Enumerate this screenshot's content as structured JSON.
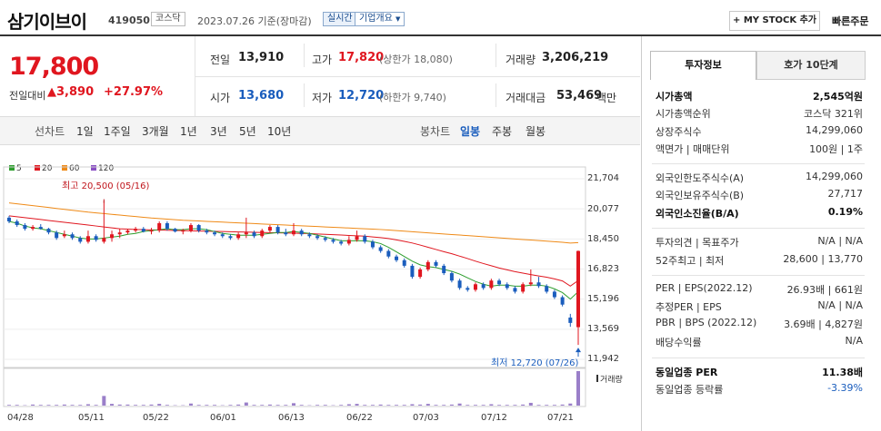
{
  "header": {
    "name": "삼기이브이",
    "code": "419050",
    "market": "코스닥",
    "date": "2023.07.26 기준(장마감)",
    "realtime": "실시간",
    "company": "기업개요",
    "mystock": "+ MY STOCK 추가",
    "fast_order": "빠른주문"
  },
  "quote": {
    "price": "17,800",
    "change_label": "전일대비",
    "change": "▲3,890",
    "change_pct": "+27.97%",
    "prev_label": "전일",
    "prev": "13,910",
    "high_label": "고가",
    "high": "17,820",
    "upper_limit": "(상한가 18,080)",
    "volume_label": "거래량",
    "volume": "3,206,219",
    "open_label": "시가",
    "open": "13,680",
    "low_label": "저가",
    "low": "12,720",
    "lower_limit": "(하한가 9,740)",
    "amount_label": "거래대금",
    "amount": "53,469",
    "amount_unit": "백만"
  },
  "chart_tabs": {
    "line_label": "선차트",
    "periods": [
      "1일",
      "1주일",
      "3개월",
      "1년",
      "3년",
      "5년",
      "10년"
    ],
    "candle_label": "봉차트",
    "candle_periods": [
      "일봉",
      "주봉",
      "월봉"
    ],
    "selected": "일봉"
  },
  "side": {
    "tabs": [
      "투자정보",
      "호가 10단계"
    ],
    "rows": [
      {
        "label": "시가총액",
        "value": "2,545억원",
        "bold": true
      },
      {
        "label": "시가총액순위",
        "value": "코스닥 321위"
      },
      {
        "label": "상장주식수",
        "value": "14,299,060"
      },
      {
        "label": "액면가 | 매매단위",
        "value": "100원 | 1주"
      },
      {
        "label": "외국인한도주식수(A)",
        "value": "14,299,060"
      },
      {
        "label": "외국인보유주식수(B)",
        "value": "27,717"
      },
      {
        "label": "외국인소진율(B/A)",
        "value": "0.19%",
        "bold": true
      },
      {
        "label": "투자의견 | 목표주가",
        "value": "N/A | N/A"
      },
      {
        "label": "52주최고 | 최저",
        "value": "28,600 | 13,770"
      },
      {
        "label": "PER | EPS(2022.12)",
        "value": "26.93배 | 661원"
      },
      {
        "label": "추정PER | EPS",
        "value": "N/A | N/A"
      },
      {
        "label": "PBR | BPS (2022.12)",
        "value": "3.69배 | 4,827원"
      },
      {
        "label": "배당수익률",
        "value": "N/A"
      },
      {
        "label": "동일업종 PER",
        "value": "11.38배",
        "bold": true
      },
      {
        "label": "동일업종 등락률",
        "value": "-3.39%",
        "blue": true
      }
    ]
  },
  "chart_data": {
    "type": "candlestick",
    "legend": [
      {
        "name": "5",
        "color": "#2e9e2e"
      },
      {
        "name": "20",
        "color": "#e0161f"
      },
      {
        "name": "60",
        "color": "#ef8a17"
      },
      {
        "name": "120",
        "color": "#8a4fc4"
      }
    ],
    "yticks": [
      "21,704",
      "20,077",
      "18,450",
      "16,823",
      "15,196",
      "13,569",
      "11,942"
    ],
    "ylim": [
      11942,
      21704
    ],
    "xticks": [
      "04/28",
      "05/11",
      "05/22",
      "06/01",
      "06/13",
      "06/22",
      "07/03",
      "07/12",
      "07/21"
    ],
    "high_note": "최고 20,500 (05/16)",
    "low_note": "최저 12,720 (07/26)",
    "volume_label": "거래량",
    "candles": [
      [
        19600,
        19700,
        19300,
        19400
      ],
      [
        19400,
        19500,
        19100,
        19200
      ],
      [
        19200,
        19300,
        18900,
        19000
      ],
      [
        19000,
        19200,
        18900,
        19100
      ],
      [
        19100,
        19250,
        18950,
        19000
      ],
      [
        19000,
        19050,
        18700,
        18800
      ],
      [
        18800,
        18900,
        18400,
        18500
      ],
      [
        18600,
        18900,
        18500,
        18700
      ],
      [
        18700,
        18800,
        18400,
        18500
      ],
      [
        18500,
        18600,
        18200,
        18300
      ],
      [
        18300,
        18900,
        18200,
        18600
      ],
      [
        18600,
        18700,
        18300,
        18400
      ],
      [
        18300,
        20500,
        18200,
        18500
      ],
      [
        18500,
        18900,
        18300,
        18700
      ],
      [
        18700,
        19000,
        18500,
        18800
      ],
      [
        18800,
        19000,
        18700,
        18900
      ],
      [
        18900,
        19100,
        18800,
        19000
      ],
      [
        19000,
        19100,
        18800,
        18850
      ],
      [
        18850,
        19050,
        18700,
        18900
      ],
      [
        18900,
        19400,
        18800,
        19300
      ],
      [
        19300,
        19400,
        18900,
        19000
      ],
      [
        19000,
        19050,
        18800,
        18850
      ],
      [
        18850,
        19000,
        18700,
        18900
      ],
      [
        18900,
        19300,
        18800,
        19200
      ],
      [
        19200,
        19250,
        18800,
        18900
      ],
      [
        18900,
        19000,
        18700,
        18800
      ],
      [
        18800,
        18900,
        18600,
        18700
      ],
      [
        18700,
        18800,
        18500,
        18600
      ],
      [
        18600,
        18700,
        18400,
        18500
      ],
      [
        18500,
        18800,
        18400,
        18700
      ],
      [
        18700,
        19600,
        18500,
        18800
      ],
      [
        18800,
        18900,
        18500,
        18600
      ],
      [
        18600,
        19000,
        18500,
        18900
      ],
      [
        18900,
        19200,
        18800,
        19100
      ],
      [
        19100,
        19200,
        18700,
        18800
      ],
      [
        18800,
        19000,
        18600,
        18700
      ],
      [
        18700,
        19300,
        18600,
        18900
      ],
      [
        18900,
        19000,
        18600,
        18700
      ],
      [
        18700,
        18800,
        18500,
        18600
      ],
      [
        18600,
        18700,
        18400,
        18500
      ],
      [
        18500,
        18600,
        18300,
        18400
      ],
      [
        18400,
        18500,
        18200,
        18300
      ],
      [
        18300,
        18400,
        18100,
        18200
      ],
      [
        18200,
        18600,
        18100,
        18400
      ],
      [
        18400,
        18900,
        18300,
        18600
      ],
      [
        18600,
        18700,
        18200,
        18300
      ],
      [
        18300,
        18400,
        17900,
        18000
      ],
      [
        18000,
        18100,
        17700,
        17800
      ],
      [
        17800,
        17900,
        17400,
        17500
      ],
      [
        17500,
        17600,
        17200,
        17300
      ],
      [
        17300,
        17400,
        16900,
        17000
      ],
      [
        17000,
        17100,
        16300,
        16400
      ],
      [
        16400,
        16900,
        16300,
        16800
      ],
      [
        16800,
        17300,
        16700,
        17200
      ],
      [
        17200,
        17300,
        16900,
        17000
      ],
      [
        17000,
        17100,
        16500,
        16600
      ],
      [
        16600,
        16700,
        16100,
        16200
      ],
      [
        16200,
        16300,
        15700,
        15800
      ],
      [
        15800,
        15900,
        15600,
        15700
      ],
      [
        15700,
        16100,
        15600,
        16000
      ],
      [
        16000,
        16100,
        15700,
        15800
      ],
      [
        15800,
        16300,
        15700,
        16200
      ],
      [
        16200,
        16300,
        15900,
        16000
      ],
      [
        16000,
        16100,
        15700,
        15800
      ],
      [
        15800,
        15900,
        15500,
        15600
      ],
      [
        15600,
        16100,
        15500,
        16000
      ],
      [
        16000,
        16800,
        15900,
        16100
      ],
      [
        16100,
        16400,
        15800,
        15900
      ],
      [
        15900,
        16000,
        15500,
        15600
      ],
      [
        15600,
        15700,
        15200,
        15300
      ],
      [
        15300,
        15400,
        14800,
        14900
      ],
      [
        14200,
        14400,
        13700,
        13910
      ],
      [
        13680,
        17820,
        12720,
        17800
      ]
    ],
    "ma5": [
      19400,
      19300,
      19150,
      19050,
      19000,
      18900,
      18800,
      18700,
      18600,
      18500,
      18450,
      18450,
      18500,
      18550,
      18600,
      18700,
      18750,
      18850,
      18900,
      18950,
      19000,
      18950,
      18950,
      19000,
      19000,
      18950,
      18850,
      18750,
      18700,
      18650,
      18650,
      18650,
      18700,
      18750,
      18800,
      18800,
      18850,
      18800,
      18750,
      18650,
      18550,
      18450,
      18350,
      18350,
      18350,
      18350,
      18300,
      18200,
      18000,
      17750,
      17500,
      17250,
      17050,
      16950,
      16900,
      16800,
      16700,
      16550,
      16350,
      16150,
      16000,
      15900,
      15950,
      15950,
      15900,
      15900,
      15950,
      15950,
      15900,
      15750,
      15550,
      15200,
      15600
    ],
    "ma20": [
      19700,
      19650,
      19600,
      19550,
      19500,
      19450,
      19400,
      19350,
      19300,
      19250,
      19200,
      19150,
      19100,
      19050,
      19000,
      18980,
      18960,
      18950,
      18940,
      18930,
      18920,
      18910,
      18900,
      18890,
      18880,
      18870,
      18860,
      18850,
      18840,
      18830,
      18820,
      18810,
      18800,
      18790,
      18780,
      18770,
      18760,
      18750,
      18740,
      18720,
      18700,
      18680,
      18660,
      18640,
      18620,
      18600,
      18560,
      18520,
      18470,
      18400,
      18320,
      18230,
      18120,
      18000,
      17880,
      17760,
      17650,
      17520,
      17390,
      17250,
      17120,
      17000,
      16880,
      16780,
      16680,
      16600,
      16520,
      16450,
      16380,
      16290,
      16180,
      15900,
      16200
    ],
    "ma60": [
      20400,
      20350,
      20300,
      20250,
      20200,
      20150,
      20100,
      20050,
      20000,
      19950,
      19900,
      19860,
      19820,
      19780,
      19740,
      19700,
      19660,
      19620,
      19580,
      19550,
      19520,
      19490,
      19460,
      19440,
      19420,
      19400,
      19380,
      19360,
      19340,
      19320,
      19300,
      19280,
      19260,
      19240,
      19220,
      19200,
      19180,
      19160,
      19140,
      19120,
      19100,
      19080,
      19060,
      19040,
      19020,
      19000,
      18980,
      18960,
      18930,
      18900,
      18870,
      18840,
      18810,
      18780,
      18750,
      18720,
      18690,
      18660,
      18630,
      18600,
      18570,
      18540,
      18510,
      18480,
      18450,
      18420,
      18390,
      18360,
      18330,
      18300,
      18270,
      18230,
      18250
    ],
    "volume": [
      0.02,
      0.02,
      0.01,
      0.03,
      0.02,
      0.02,
      0.02,
      0.03,
      0.02,
      0.02,
      0.04,
      0.02,
      0.28,
      0.05,
      0.03,
      0.03,
      0.02,
      0.02,
      0.03,
      0.05,
      0.02,
      0.01,
      0.01,
      0.06,
      0.02,
      0.02,
      0.02,
      0.01,
      0.02,
      0.03,
      0.09,
      0.02,
      0.02,
      0.03,
      0.02,
      0.02,
      0.07,
      0.02,
      0.01,
      0.02,
      0.02,
      0.01,
      0.02,
      0.04,
      0.05,
      0.02,
      0.02,
      0.03,
      0.02,
      0.02,
      0.02,
      0.04,
      0.03,
      0.05,
      0.02,
      0.02,
      0.03,
      0.06,
      0.02,
      0.02,
      0.02,
      0.04,
      0.02,
      0.02,
      0.02,
      0.03,
      0.08,
      0.02,
      0.02,
      0.02,
      0.03,
      0.06,
      1.0
    ]
  }
}
